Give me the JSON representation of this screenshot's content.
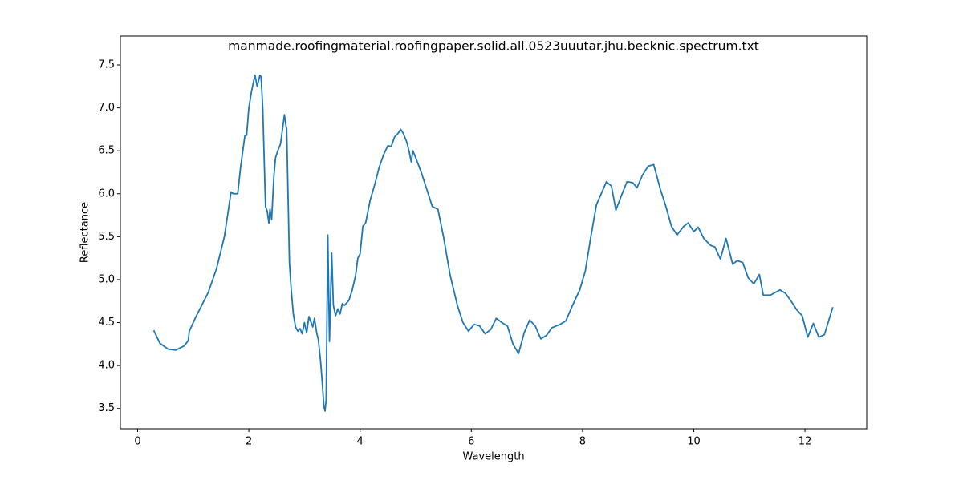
{
  "chart_data": {
    "type": "line",
    "title": "manmade.roofingmaterial.roofingpaper.solid.all.0523uuutar.jhu.becknic.spectrum.txt",
    "x_label": "Wavelength",
    "y_label": "Reflectance",
    "color": "#1f77b4",
    "x": [
      0.29,
      0.4,
      0.55,
      0.69,
      0.84,
      0.91,
      0.93,
      1.05,
      1.27,
      1.42,
      1.56,
      1.68,
      1.72,
      1.8,
      1.85,
      1.93,
      1.96,
      2.0,
      2.05,
      2.11,
      2.15,
      2.2,
      2.22,
      2.25,
      2.3,
      2.33,
      2.36,
      2.38,
      2.41,
      2.45,
      2.48,
      2.52,
      2.57,
      2.64,
      2.67,
      2.68,
      2.73,
      2.76,
      2.8,
      2.84,
      2.88,
      2.92,
      2.96,
      3.0,
      3.04,
      3.08,
      3.12,
      3.15,
      3.18,
      3.22,
      3.25,
      3.29,
      3.32,
      3.35,
      3.37,
      3.39,
      3.42,
      3.45,
      3.49,
      3.52,
      3.56,
      3.6,
      3.64,
      3.68,
      3.72,
      3.8,
      3.86,
      3.92,
      3.96,
      4.0,
      4.05,
      4.1,
      4.18,
      4.27,
      4.34,
      4.42,
      4.5,
      4.56,
      4.62,
      4.68,
      4.73,
      4.78,
      4.84,
      4.88,
      4.92,
      4.95,
      5.0,
      5.1,
      5.2,
      5.3,
      5.4,
      5.5,
      5.62,
      5.75,
      5.85,
      5.95,
      6.05,
      6.15,
      6.25,
      6.35,
      6.45,
      6.55,
      6.65,
      6.75,
      6.85,
      6.95,
      7.05,
      7.15,
      7.25,
      7.35,
      7.45,
      7.6,
      7.7,
      7.82,
      7.95,
      8.05,
      8.15,
      8.25,
      8.35,
      8.43,
      8.52,
      8.6,
      8.7,
      8.8,
      8.9,
      8.98,
      9.08,
      9.18,
      9.28,
      9.4,
      9.5,
      9.6,
      9.7,
      9.82,
      9.9,
      10.0,
      10.08,
      10.18,
      10.3,
      10.38,
      10.48,
      10.58,
      10.7,
      10.78,
      10.88,
      10.98,
      11.08,
      11.18,
      11.25,
      11.38,
      11.55,
      11.65,
      11.75,
      11.85,
      11.95,
      12.05,
      12.15,
      12.25,
      12.35,
      12.5
    ],
    "values": [
      4.41,
      4.26,
      4.19,
      4.18,
      4.23,
      4.29,
      4.4,
      4.57,
      4.85,
      5.13,
      5.5,
      6.02,
      6.0,
      6.0,
      6.3,
      6.68,
      6.68,
      7.0,
      7.2,
      7.38,
      7.25,
      7.38,
      7.36,
      7.0,
      5.85,
      5.8,
      5.66,
      5.82,
      5.7,
      6.2,
      6.42,
      6.5,
      6.58,
      6.92,
      6.78,
      6.76,
      5.2,
      4.9,
      4.6,
      4.45,
      4.4,
      4.43,
      4.37,
      4.5,
      4.38,
      4.57,
      4.5,
      4.45,
      4.55,
      4.38,
      4.3,
      4.05,
      3.8,
      3.52,
      3.47,
      3.6,
      5.52,
      4.28,
      5.31,
      4.7,
      4.58,
      4.66,
      4.6,
      4.72,
      4.7,
      4.76,
      4.88,
      5.05,
      5.25,
      5.3,
      5.62,
      5.66,
      5.92,
      6.12,
      6.3,
      6.45,
      6.56,
      6.55,
      6.66,
      6.7,
      6.75,
      6.7,
      6.6,
      6.5,
      6.37,
      6.5,
      6.42,
      6.25,
      6.05,
      5.85,
      5.82,
      5.5,
      5.05,
      4.7,
      4.5,
      4.4,
      4.48,
      4.46,
      4.37,
      4.42,
      4.55,
      4.5,
      4.46,
      4.25,
      4.14,
      4.38,
      4.53,
      4.46,
      4.31,
      4.35,
      4.44,
      4.48,
      4.52,
      4.7,
      4.88,
      5.1,
      5.5,
      5.87,
      6.02,
      6.14,
      6.09,
      5.81,
      5.98,
      6.14,
      6.13,
      6.07,
      6.22,
      6.32,
      6.34,
      6.05,
      5.85,
      5.62,
      5.52,
      5.62,
      5.66,
      5.56,
      5.61,
      5.48,
      5.4,
      5.38,
      5.24,
      5.48,
      5.18,
      5.22,
      5.2,
      5.02,
      4.95,
      5.06,
      4.82,
      4.82,
      4.88,
      4.84,
      4.75,
      4.65,
      4.58,
      4.33,
      4.49,
      4.33,
      4.36,
      4.68
    ],
    "xlim": [
      -0.31,
      13.11
    ],
    "ylim": [
      3.264,
      7.836
    ],
    "xticks": [
      0,
      2,
      4,
      6,
      8,
      10,
      12
    ],
    "yticks": [
      3.5,
      {
        "value": 4,
        "label": "4.0"
      },
      4.5,
      {
        "value": 5,
        "label": "5.0"
      },
      5.5,
      {
        "value": 6,
        "label": "6.0"
      },
      6.5,
      {
        "value": 7,
        "label": "7.0"
      },
      7.5
    ]
  }
}
